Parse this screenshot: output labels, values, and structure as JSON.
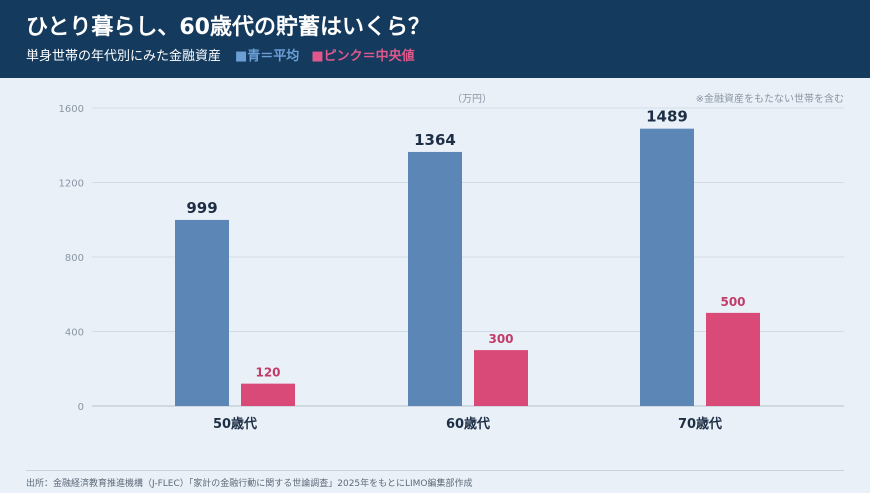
{
  "header": {
    "title": "ひとり暮らし、60歳代の貯蓄はいくら？",
    "subtitle": "単身世帯の年代別にみた金融資産",
    "legend_blue": "■青＝平均",
    "legend_pink": "■ピンク＝中央値"
  },
  "unit_label": "（万円）",
  "note": "※金融資産をもたない世帯を含む",
  "source": "出所：金融経済教育推進機構（J-FLEC）「家計の金融行動に関する世論調査」2025年をもとにLIMO編集部作成",
  "colors": {
    "average": "#5b86b6",
    "median": "#d94a78",
    "median_label": "#c23c6a",
    "header_bg": "#143a5e"
  },
  "chart_data": {
    "type": "bar",
    "categories": [
      "50歳代",
      "60歳代",
      "70歳代"
    ],
    "series": [
      {
        "name": "平均",
        "values": [
          999,
          1364,
          1489
        ]
      },
      {
        "name": "中央値",
        "values": [
          120,
          300,
          500
        ]
      }
    ],
    "yticks": [
      0,
      400,
      800,
      1200,
      1600
    ],
    "ylim": [
      0,
      1600
    ],
    "grid": true
  }
}
